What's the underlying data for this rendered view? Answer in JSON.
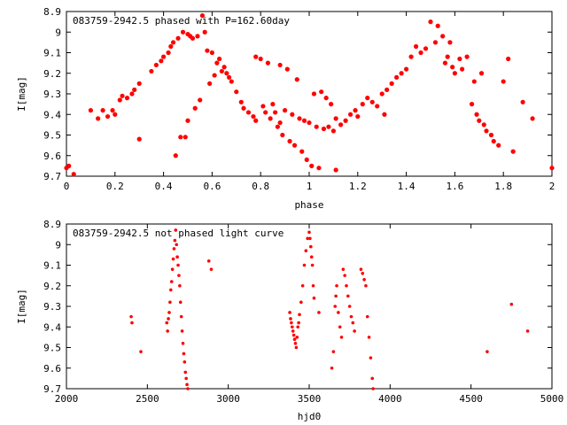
{
  "chart_data": [
    {
      "type": "scatter",
      "title": "083759-2942.5 phased with P=162.60day",
      "xlabel": "phase",
      "ylabel": "I[mag]",
      "xlim": [
        0,
        2
      ],
      "ylim": [
        9.7,
        8.9
      ],
      "y_inverted": true,
      "xticks": [
        "0",
        "0.2",
        "0.4",
        "0.6",
        "0.8",
        "1",
        "1.2",
        "1.4",
        "1.6",
        "1.8",
        "2"
      ],
      "yticks": [
        "8.9",
        "9",
        "9.1",
        "9.2",
        "9.3",
        "9.4",
        "9.5",
        "9.6",
        "9.7"
      ],
      "grid": false,
      "marker_color": "#ff0000",
      "points": [
        [
          0.0,
          9.66
        ],
        [
          0.01,
          9.65
        ],
        [
          0.03,
          9.69
        ],
        [
          0.1,
          9.38
        ],
        [
          0.13,
          9.42
        ],
        [
          0.15,
          9.38
        ],
        [
          0.17,
          9.41
        ],
        [
          0.19,
          9.38
        ],
        [
          0.2,
          9.4
        ],
        [
          0.22,
          9.33
        ],
        [
          0.23,
          9.31
        ],
        [
          0.25,
          9.32
        ],
        [
          0.27,
          9.3
        ],
        [
          0.28,
          9.28
        ],
        [
          0.3,
          9.25
        ],
        [
          0.3,
          9.52
        ],
        [
          0.35,
          9.19
        ],
        [
          0.37,
          9.16
        ],
        [
          0.39,
          9.14
        ],
        [
          0.4,
          9.12
        ],
        [
          0.42,
          9.1
        ],
        [
          0.43,
          9.07
        ],
        [
          0.44,
          9.05
        ],
        [
          0.45,
          9.6
        ],
        [
          0.46,
          9.03
        ],
        [
          0.47,
          9.51
        ],
        [
          0.48,
          9.0
        ],
        [
          0.49,
          9.51
        ],
        [
          0.5,
          9.01
        ],
        [
          0.5,
          9.43
        ],
        [
          0.51,
          9.02
        ],
        [
          0.52,
          9.03
        ],
        [
          0.53,
          9.37
        ],
        [
          0.54,
          9.02
        ],
        [
          0.55,
          9.33
        ],
        [
          0.56,
          8.92
        ],
        [
          0.57,
          9.0
        ],
        [
          0.58,
          9.09
        ],
        [
          0.59,
          9.25
        ],
        [
          0.6,
          9.1
        ],
        [
          0.61,
          9.21
        ],
        [
          0.62,
          9.15
        ],
        [
          0.63,
          9.13
        ],
        [
          0.64,
          9.19
        ],
        [
          0.65,
          9.17
        ],
        [
          0.66,
          9.2
        ],
        [
          0.67,
          9.22
        ],
        [
          0.68,
          9.24
        ],
        [
          0.7,
          9.29
        ],
        [
          0.72,
          9.34
        ],
        [
          0.73,
          9.37
        ],
        [
          0.75,
          9.39
        ],
        [
          0.77,
          9.41
        ],
        [
          0.78,
          9.43
        ],
        [
          0.78,
          9.12
        ],
        [
          0.8,
          9.13
        ],
        [
          0.81,
          9.36
        ],
        [
          0.82,
          9.39
        ],
        [
          0.83,
          9.15
        ],
        [
          0.84,
          9.42
        ],
        [
          0.85,
          9.35
        ],
        [
          0.86,
          9.39
        ],
        [
          0.87,
          9.46
        ],
        [
          0.88,
          9.44
        ],
        [
          0.88,
          9.16
        ],
        [
          0.89,
          9.5
        ],
        [
          0.9,
          9.38
        ],
        [
          0.91,
          9.18
        ],
        [
          0.92,
          9.53
        ],
        [
          0.93,
          9.4
        ],
        [
          0.94,
          9.55
        ],
        [
          0.95,
          9.23
        ],
        [
          0.96,
          9.42
        ],
        [
          0.97,
          9.58
        ],
        [
          0.98,
          9.43
        ],
        [
          0.99,
          9.62
        ],
        [
          1.0,
          9.44
        ],
        [
          1.01,
          9.65
        ],
        [
          1.02,
          9.3
        ],
        [
          1.03,
          9.46
        ],
        [
          1.04,
          9.66
        ],
        [
          1.05,
          9.29
        ],
        [
          1.06,
          9.47
        ],
        [
          1.07,
          9.32
        ],
        [
          1.08,
          9.46
        ],
        [
          1.09,
          9.35
        ],
        [
          1.1,
          9.48
        ],
        [
          1.11,
          9.42
        ],
        [
          1.11,
          9.67
        ],
        [
          1.13,
          9.45
        ],
        [
          1.15,
          9.43
        ],
        [
          1.17,
          9.4
        ],
        [
          1.19,
          9.38
        ],
        [
          1.2,
          9.41
        ],
        [
          1.22,
          9.35
        ],
        [
          1.24,
          9.32
        ],
        [
          1.26,
          9.34
        ],
        [
          1.28,
          9.36
        ],
        [
          1.3,
          9.3
        ],
        [
          1.31,
          9.4
        ],
        [
          1.32,
          9.28
        ],
        [
          1.34,
          9.25
        ],
        [
          1.36,
          9.22
        ],
        [
          1.38,
          9.2
        ],
        [
          1.4,
          9.18
        ],
        [
          1.42,
          9.12
        ],
        [
          1.44,
          9.07
        ],
        [
          1.46,
          9.1
        ],
        [
          1.48,
          9.08
        ],
        [
          1.5,
          8.95
        ],
        [
          1.52,
          9.05
        ],
        [
          1.53,
          8.97
        ],
        [
          1.55,
          9.02
        ],
        [
          1.56,
          9.15
        ],
        [
          1.57,
          9.12
        ],
        [
          1.58,
          9.05
        ],
        [
          1.59,
          9.17
        ],
        [
          1.6,
          9.2
        ],
        [
          1.62,
          9.13
        ],
        [
          1.63,
          9.18
        ],
        [
          1.65,
          9.12
        ],
        [
          1.67,
          9.35
        ],
        [
          1.68,
          9.24
        ],
        [
          1.69,
          9.4
        ],
        [
          1.7,
          9.43
        ],
        [
          1.71,
          9.2
        ],
        [
          1.72,
          9.45
        ],
        [
          1.73,
          9.48
        ],
        [
          1.75,
          9.5
        ],
        [
          1.76,
          9.53
        ],
        [
          1.78,
          9.55
        ],
        [
          1.8,
          9.24
        ],
        [
          1.82,
          9.13
        ],
        [
          1.84,
          9.58
        ],
        [
          1.88,
          9.34
        ],
        [
          1.92,
          9.42
        ],
        [
          2.0,
          9.66
        ]
      ]
    },
    {
      "type": "scatter",
      "title": "083759-2942.5 not phased light curve",
      "xlabel": "hjd0",
      "ylabel": "I[mag]",
      "xlim": [
        2000,
        5000
      ],
      "ylim": [
        9.7,
        8.9
      ],
      "y_inverted": true,
      "xticks": [
        "2000",
        "2500",
        "3000",
        "3500",
        "4000",
        "4500",
        "5000"
      ],
      "yticks": [
        "8.9",
        "9",
        "9.1",
        "9.2",
        "9.3",
        "9.4",
        "9.5",
        "9.6",
        "9.7"
      ],
      "grid": false,
      "marker_color": "#ff0000",
      "points": [
        [
          2400,
          9.35
        ],
        [
          2405,
          9.38
        ],
        [
          2460,
          9.52
        ],
        [
          2620,
          9.38
        ],
        [
          2625,
          9.42
        ],
        [
          2630,
          9.36
        ],
        [
          2635,
          9.33
        ],
        [
          2640,
          9.28
        ],
        [
          2645,
          9.22
        ],
        [
          2650,
          9.18
        ],
        [
          2655,
          9.12
        ],
        [
          2660,
          9.07
        ],
        [
          2665,
          9.02
        ],
        [
          2670,
          8.98
        ],
        [
          2675,
          8.93
        ],
        [
          2680,
          9.0
        ],
        [
          2685,
          9.06
        ],
        [
          2690,
          9.1
        ],
        [
          2695,
          9.15
        ],
        [
          2700,
          9.2
        ],
        [
          2705,
          9.28
        ],
        [
          2710,
          9.35
        ],
        [
          2715,
          9.42
        ],
        [
          2720,
          9.48
        ],
        [
          2725,
          9.53
        ],
        [
          2730,
          9.57
        ],
        [
          2735,
          9.62
        ],
        [
          2740,
          9.65
        ],
        [
          2745,
          9.68
        ],
        [
          2750,
          9.7
        ],
        [
          2880,
          9.08
        ],
        [
          2895,
          9.12
        ],
        [
          3380,
          9.33
        ],
        [
          3385,
          9.36
        ],
        [
          3390,
          9.38
        ],
        [
          3395,
          9.4
        ],
        [
          3400,
          9.42
        ],
        [
          3405,
          9.44
        ],
        [
          3410,
          9.46
        ],
        [
          3415,
          9.48
        ],
        [
          3420,
          9.5
        ],
        [
          3425,
          9.45
        ],
        [
          3430,
          9.4
        ],
        [
          3435,
          9.38
        ],
        [
          3440,
          9.34
        ],
        [
          3450,
          9.28
        ],
        [
          3460,
          9.2
        ],
        [
          3470,
          9.1
        ],
        [
          3480,
          9.03
        ],
        [
          3490,
          8.97
        ],
        [
          3500,
          8.94
        ],
        [
          3505,
          8.97
        ],
        [
          3510,
          9.01
        ],
        [
          3515,
          9.06
        ],
        [
          3520,
          9.1
        ],
        [
          3525,
          9.2
        ],
        [
          3530,
          9.26
        ],
        [
          3560,
          9.33
        ],
        [
          3640,
          9.6
        ],
        [
          3650,
          9.52
        ],
        [
          3660,
          9.3
        ],
        [
          3665,
          9.25
        ],
        [
          3670,
          9.2
        ],
        [
          3680,
          9.33
        ],
        [
          3690,
          9.4
        ],
        [
          3700,
          9.45
        ],
        [
          3710,
          9.12
        ],
        [
          3720,
          9.15
        ],
        [
          3730,
          9.2
        ],
        [
          3740,
          9.25
        ],
        [
          3750,
          9.3
        ],
        [
          3760,
          9.35
        ],
        [
          3770,
          9.38
        ],
        [
          3780,
          9.42
        ],
        [
          3820,
          9.12
        ],
        [
          3830,
          9.14
        ],
        [
          3840,
          9.17
        ],
        [
          3850,
          9.2
        ],
        [
          3860,
          9.35
        ],
        [
          3870,
          9.45
        ],
        [
          3880,
          9.55
        ],
        [
          3890,
          9.65
        ],
        [
          3895,
          9.7
        ],
        [
          4600,
          9.52
        ],
        [
          4750,
          9.29
        ],
        [
          4850,
          9.42
        ]
      ]
    }
  ]
}
